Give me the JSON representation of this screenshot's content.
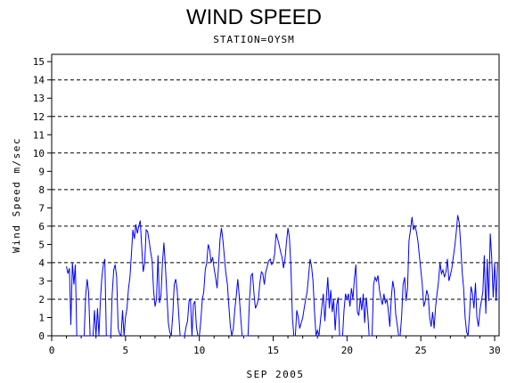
{
  "chart_data": {
    "type": "line",
    "title": "WIND SPEED",
    "subtitle": "STATION=OYSM",
    "xlabel": "SEP 2005",
    "ylabel": "Wind Speed m/sec",
    "xlim": [
      0,
      30.3
    ],
    "ylim": [
      0,
      15.4
    ],
    "x_ticks": [
      0,
      5,
      10,
      15,
      20,
      25,
      30
    ],
    "y_ticks": [
      0,
      1,
      2,
      3,
      4,
      5,
      6,
      7,
      8,
      9,
      10,
      11,
      12,
      13,
      14,
      15
    ],
    "reference_lines": [
      0,
      2,
      4,
      6,
      8,
      10,
      12,
      14
    ],
    "grid": "dashed horizontal reference lines",
    "line_color": "#0000ff",
    "series": [
      {
        "values": [
          [
            1.0,
            3.8
          ],
          [
            1.1,
            3.4
          ],
          [
            1.2,
            3.7
          ],
          [
            1.3,
            0.6
          ],
          [
            1.4,
            4.0
          ],
          [
            1.5,
            2.8
          ],
          [
            1.6,
            3.9
          ],
          [
            1.7,
            0.0
          ],
          [
            1.8,
            0.0
          ],
          [
            2.0,
            0.0
          ],
          [
            2.2,
            0.0
          ],
          [
            2.3,
            2.2
          ],
          [
            2.4,
            3.1
          ],
          [
            2.5,
            2.4
          ],
          [
            2.6,
            0.0
          ],
          [
            2.8,
            0.0
          ],
          [
            2.9,
            1.4
          ],
          [
            3.0,
            0.0
          ],
          [
            3.1,
            1.5
          ],
          [
            3.2,
            0.0
          ],
          [
            3.3,
            2.0
          ],
          [
            3.4,
            3.2
          ],
          [
            3.5,
            3.9
          ],
          [
            3.6,
            4.2
          ],
          [
            3.7,
            0.0
          ],
          [
            3.8,
            0.0
          ],
          [
            4.0,
            0.0
          ],
          [
            4.1,
            2.3
          ],
          [
            4.2,
            3.6
          ],
          [
            4.3,
            3.9
          ],
          [
            4.4,
            3.2
          ],
          [
            4.5,
            0.4
          ],
          [
            4.6,
            0.1
          ],
          [
            4.7,
            0.0
          ],
          [
            4.8,
            1.4
          ],
          [
            4.9,
            0.0
          ],
          [
            5.0,
            1.0
          ],
          [
            5.1,
            1.5
          ],
          [
            5.2,
            2.6
          ],
          [
            5.3,
            3.2
          ],
          [
            5.4,
            4.5
          ],
          [
            5.5,
            5.8
          ],
          [
            5.6,
            5.3
          ],
          [
            5.7,
            6.1
          ],
          [
            5.8,
            5.6
          ],
          [
            5.9,
            6.0
          ],
          [
            6.0,
            6.3
          ],
          [
            6.1,
            4.8
          ],
          [
            6.2,
            3.5
          ],
          [
            6.3,
            4.0
          ],
          [
            6.4,
            5.8
          ],
          [
            6.5,
            5.7
          ],
          [
            6.6,
            5.2
          ],
          [
            6.7,
            4.6
          ],
          [
            6.8,
            4.1
          ],
          [
            6.9,
            2.5
          ],
          [
            7.0,
            1.6
          ],
          [
            7.1,
            2.0
          ],
          [
            7.2,
            4.4
          ],
          [
            7.3,
            1.8
          ],
          [
            7.4,
            2.2
          ],
          [
            7.5,
            4.0
          ],
          [
            7.6,
            5.1
          ],
          [
            7.7,
            3.8
          ],
          [
            7.8,
            2.3
          ],
          [
            7.9,
            0.7
          ],
          [
            8.0,
            0.2
          ],
          [
            8.1,
            0.0
          ],
          [
            8.2,
            1.2
          ],
          [
            8.3,
            2.8
          ],
          [
            8.4,
            3.1
          ],
          [
            8.5,
            2.5
          ],
          [
            8.6,
            1.2
          ],
          [
            8.7,
            0.0
          ],
          [
            8.9,
            0.0
          ],
          [
            9.0,
            0.0
          ],
          [
            9.1,
            0.5
          ],
          [
            9.2,
            0.8
          ],
          [
            9.3,
            1.9
          ],
          [
            9.4,
            2.0
          ],
          [
            9.5,
            0.0
          ],
          [
            9.6,
            1.7
          ],
          [
            9.7,
            1.9
          ],
          [
            9.8,
            0.5
          ],
          [
            9.9,
            0.0
          ],
          [
            10.0,
            0.0
          ],
          [
            10.1,
            0.8
          ],
          [
            10.2,
            2.0
          ],
          [
            10.3,
            2.4
          ],
          [
            10.4,
            3.6
          ],
          [
            10.5,
            4.0
          ],
          [
            10.6,
            5.0
          ],
          [
            10.7,
            4.7
          ],
          [
            10.8,
            4.0
          ],
          [
            10.9,
            4.3
          ],
          [
            11.0,
            3.7
          ],
          [
            11.1,
            3.2
          ],
          [
            11.2,
            2.6
          ],
          [
            11.3,
            3.8
          ],
          [
            11.4,
            5.3
          ],
          [
            11.5,
            5.9
          ],
          [
            11.6,
            5.2
          ],
          [
            11.7,
            4.3
          ],
          [
            11.8,
            3.4
          ],
          [
            11.9,
            2.8
          ],
          [
            12.0,
            1.6
          ],
          [
            12.1,
            0.5
          ],
          [
            12.2,
            0.0
          ],
          [
            12.3,
            0.4
          ],
          [
            12.4,
            1.4
          ],
          [
            12.5,
            2.2
          ],
          [
            12.6,
            3.1
          ],
          [
            12.7,
            2.2
          ],
          [
            12.8,
            1.0
          ],
          [
            12.9,
            0.0
          ],
          [
            13.1,
            0.0
          ],
          [
            13.3,
            0.0
          ],
          [
            13.4,
            2.0
          ],
          [
            13.5,
            3.3
          ],
          [
            13.6,
            3.4
          ],
          [
            13.7,
            2.3
          ],
          [
            13.8,
            1.5
          ],
          [
            13.9,
            1.7
          ],
          [
            14.0,
            2.0
          ],
          [
            14.1,
            2.9
          ],
          [
            14.2,
            3.5
          ],
          [
            14.3,
            3.4
          ],
          [
            14.4,
            2.8
          ],
          [
            14.5,
            3.5
          ],
          [
            14.6,
            3.8
          ],
          [
            14.7,
            4.1
          ],
          [
            14.8,
            4.2
          ],
          [
            14.9,
            3.9
          ],
          [
            15.0,
            4.0
          ],
          [
            15.1,
            4.5
          ],
          [
            15.2,
            5.6
          ],
          [
            15.3,
            5.3
          ],
          [
            15.4,
            5.0
          ],
          [
            15.5,
            4.6
          ],
          [
            15.6,
            4.3
          ],
          [
            15.7,
            3.7
          ],
          [
            15.8,
            4.2
          ],
          [
            15.9,
            5.1
          ],
          [
            16.0,
            5.9
          ],
          [
            16.1,
            5.4
          ],
          [
            16.2,
            3.8
          ],
          [
            16.3,
            1.0
          ],
          [
            16.4,
            0.0
          ],
          [
            16.5,
            0.0
          ],
          [
            16.6,
            1.4
          ],
          [
            16.7,
            1.0
          ],
          [
            16.8,
            0.4
          ],
          [
            16.9,
            0.7
          ],
          [
            17.0,
            1.0
          ],
          [
            17.1,
            1.5
          ],
          [
            17.2,
            2.0
          ],
          [
            17.3,
            2.4
          ],
          [
            17.4,
            3.3
          ],
          [
            17.5,
            4.2
          ],
          [
            17.6,
            3.8
          ],
          [
            17.7,
            3.0
          ],
          [
            17.8,
            1.3
          ],
          [
            17.9,
            0.0
          ],
          [
            18.0,
            0.3
          ],
          [
            18.1,
            0.0
          ],
          [
            18.2,
            0.8
          ],
          [
            18.3,
            1.6
          ],
          [
            18.4,
            2.3
          ],
          [
            18.5,
            0.8
          ],
          [
            18.6,
            2.1
          ],
          [
            18.7,
            3.2
          ],
          [
            18.8,
            1.5
          ],
          [
            18.9,
            2.5
          ],
          [
            19.0,
            1.3
          ],
          [
            19.1,
            2.0
          ],
          [
            19.2,
            0.3
          ],
          [
            19.3,
            1.7
          ],
          [
            19.4,
            2.1
          ],
          [
            19.5,
            0.0
          ],
          [
            19.7,
            0.0
          ],
          [
            19.8,
            1.4
          ],
          [
            19.9,
            2.3
          ],
          [
            20.0,
            2.0
          ],
          [
            20.1,
            2.3
          ],
          [
            20.2,
            1.6
          ],
          [
            20.3,
            2.6
          ],
          [
            20.4,
            2.0
          ],
          [
            20.5,
            3.1
          ],
          [
            20.6,
            3.9
          ],
          [
            20.7,
            1.3
          ],
          [
            20.8,
            1.1
          ],
          [
            20.9,
            2.1
          ],
          [
            21.0,
            1.4
          ],
          [
            21.1,
            2.3
          ],
          [
            21.2,
            0.7
          ],
          [
            21.3,
            2.1
          ],
          [
            21.4,
            1.3
          ],
          [
            21.5,
            0.0
          ],
          [
            21.7,
            0.0
          ],
          [
            21.8,
            2.8
          ],
          [
            21.9,
            3.2
          ],
          [
            22.0,
            3.0
          ],
          [
            22.1,
            3.3
          ],
          [
            22.2,
            2.5
          ],
          [
            22.3,
            2.0
          ],
          [
            22.4,
            1.7
          ],
          [
            22.5,
            2.3
          ],
          [
            22.6,
            1.8
          ],
          [
            22.7,
            2.0
          ],
          [
            22.8,
            1.4
          ],
          [
            22.9,
            0.5
          ],
          [
            23.0,
            2.1
          ],
          [
            23.1,
            3.0
          ],
          [
            23.2,
            2.5
          ],
          [
            23.3,
            1.2
          ],
          [
            23.4,
            0.6
          ],
          [
            23.5,
            0.0
          ],
          [
            23.6,
            0.0
          ],
          [
            23.7,
            1.1
          ],
          [
            23.8,
            2.8
          ],
          [
            23.9,
            3.2
          ],
          [
            24.0,
            1.9
          ],
          [
            24.1,
            2.6
          ],
          [
            24.2,
            5.2
          ],
          [
            24.3,
            5.8
          ],
          [
            24.4,
            6.5
          ],
          [
            24.5,
            5.8
          ],
          [
            24.6,
            6.0
          ],
          [
            24.7,
            5.7
          ],
          [
            24.8,
            5.2
          ],
          [
            24.9,
            4.4
          ],
          [
            25.0,
            3.6
          ],
          [
            25.1,
            2.8
          ],
          [
            25.2,
            1.6
          ],
          [
            25.3,
            1.9
          ],
          [
            25.4,
            2.5
          ],
          [
            25.5,
            2.2
          ],
          [
            25.6,
            1.0
          ],
          [
            25.7,
            0.5
          ],
          [
            25.8,
            1.3
          ],
          [
            25.9,
            0.4
          ],
          [
            26.0,
            1.6
          ],
          [
            26.1,
            2.3
          ],
          [
            26.2,
            3.0
          ],
          [
            26.3,
            4.0
          ],
          [
            26.4,
            3.4
          ],
          [
            26.5,
            3.6
          ],
          [
            26.6,
            3.2
          ],
          [
            26.7,
            3.5
          ],
          [
            26.8,
            4.2
          ],
          [
            26.9,
            3.0
          ],
          [
            27.0,
            3.3
          ],
          [
            27.1,
            3.7
          ],
          [
            27.2,
            4.3
          ],
          [
            27.3,
            4.9
          ],
          [
            27.4,
            5.7
          ],
          [
            27.5,
            6.6
          ],
          [
            27.6,
            6.2
          ],
          [
            27.7,
            5.0
          ],
          [
            27.8,
            3.5
          ],
          [
            27.9,
            2.6
          ],
          [
            28.0,
            1.0
          ],
          [
            28.1,
            0.2
          ],
          [
            28.2,
            0.0
          ],
          [
            28.3,
            1.2
          ],
          [
            28.4,
            2.7
          ],
          [
            28.5,
            2.3
          ],
          [
            28.6,
            1.5
          ],
          [
            28.7,
            2.9
          ],
          [
            28.8,
            1.0
          ],
          [
            28.9,
            0.5
          ],
          [
            29.0,
            1.4
          ],
          [
            29.1,
            1.9
          ],
          [
            29.2,
            2.4
          ],
          [
            29.3,
            4.4
          ],
          [
            29.4,
            1.2
          ],
          [
            29.5,
            4.2
          ],
          [
            29.6,
            1.9
          ],
          [
            29.7,
            5.6
          ],
          [
            29.8,
            4.3
          ],
          [
            29.9,
            2.1
          ],
          [
            30.0,
            4.0
          ],
          [
            30.1,
            1.9
          ],
          [
            30.2,
            4.0
          ]
        ]
      }
    ]
  }
}
